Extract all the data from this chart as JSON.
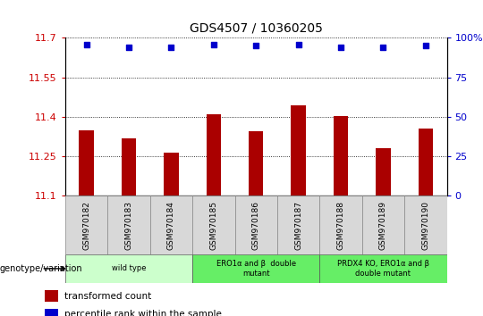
{
  "title": "GDS4507 / 10360205",
  "samples": [
    "GSM970182",
    "GSM970183",
    "GSM970184",
    "GSM970185",
    "GSM970186",
    "GSM970187",
    "GSM970188",
    "GSM970189",
    "GSM970190"
  ],
  "transformed_count": [
    11.35,
    11.32,
    11.265,
    11.41,
    11.345,
    11.445,
    11.405,
    11.28,
    11.355
  ],
  "percentile_rank": [
    96,
    94,
    94,
    96,
    95,
    96,
    94,
    94,
    95
  ],
  "ylim_left": [
    11.1,
    11.7
  ],
  "ylim_right": [
    0,
    100
  ],
  "yticks_left": [
    11.1,
    11.25,
    11.4,
    11.55,
    11.7
  ],
  "yticks_right": [
    0,
    25,
    50,
    75,
    100
  ],
  "bar_color": "#aa0000",
  "dot_color": "#0000cc",
  "group_data": [
    {
      "label": "wild type",
      "start": 0,
      "end": 2,
      "color": "#ccffcc"
    },
    {
      "label": "ERO1α and β  double\nmutant",
      "start": 3,
      "end": 5,
      "color": "#66ee66"
    },
    {
      "label": "PRDX4 KO, ERO1α and β\ndouble mutant",
      "start": 6,
      "end": 8,
      "color": "#66ee66"
    }
  ],
  "legend_label_bar": "transformed count",
  "legend_label_dot": "percentile rank within the sample",
  "genotype_label": "genotype/variation",
  "tick_color_left": "#cc0000",
  "tick_color_right": "#0000cc",
  "grid_color": "#000000",
  "sample_box_color": "#d8d8d8",
  "bar_width": 0.35
}
